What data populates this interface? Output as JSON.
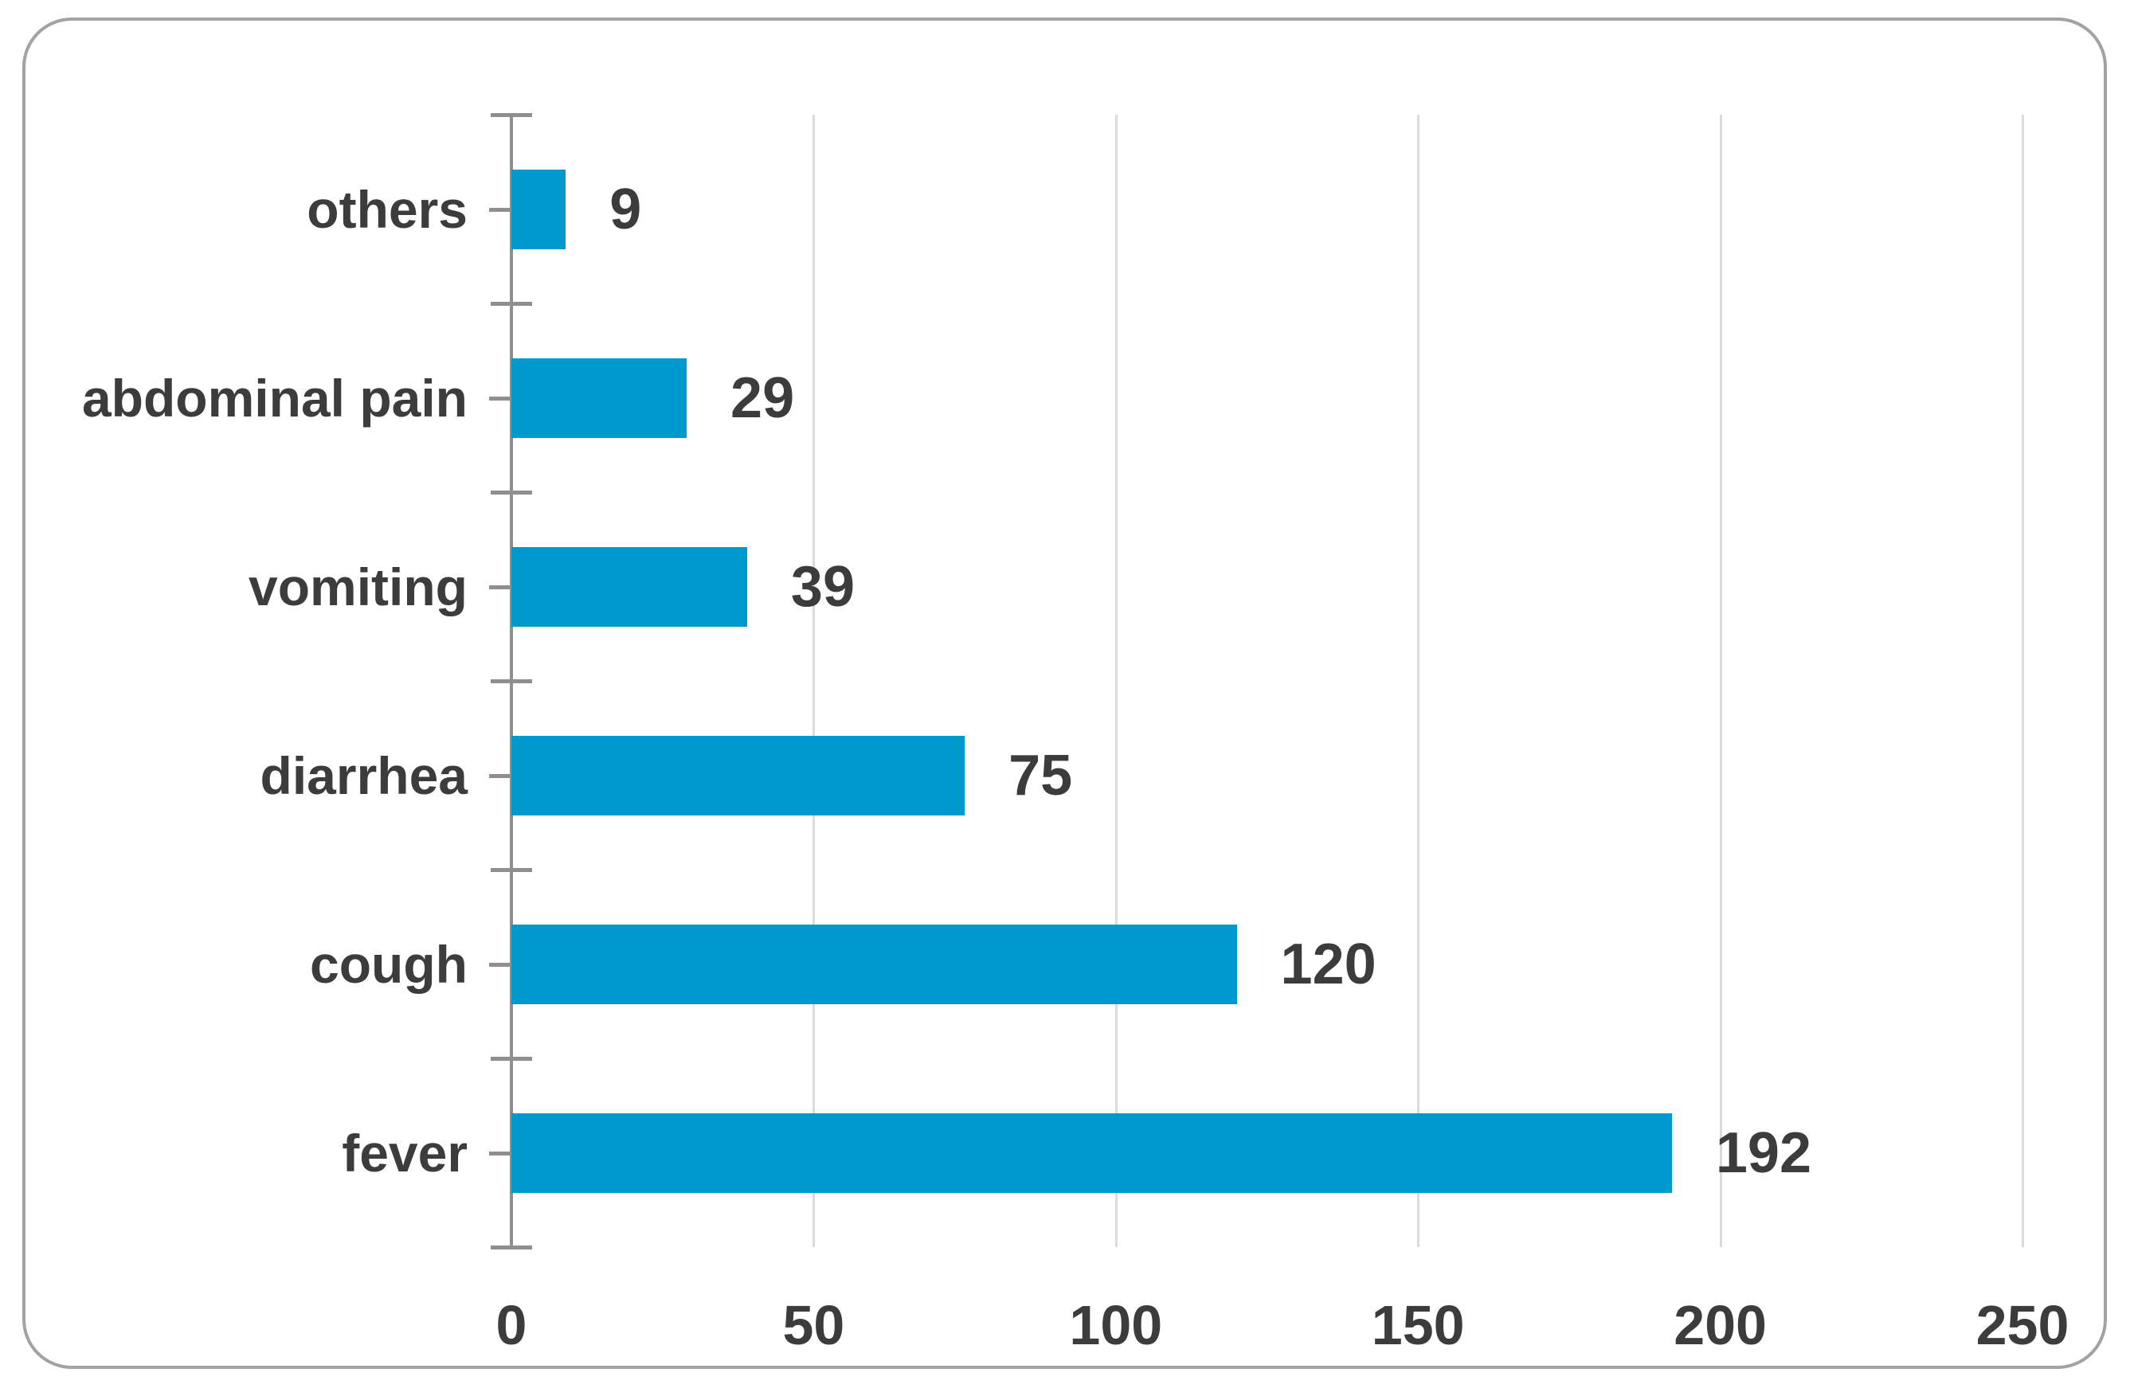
{
  "chart_data": {
    "type": "bar",
    "orientation": "horizontal",
    "title": "",
    "xlabel": "",
    "ylabel": "",
    "categories": [
      "others",
      "abdominal pain",
      "vomiting",
      "diarrhea",
      "cough",
      "fever"
    ],
    "values": [
      9,
      29,
      39,
      75,
      120,
      192
    ],
    "data_labels": [
      "9",
      "29",
      "39",
      "75",
      "120",
      "192"
    ],
    "x_ticks": [
      "0",
      "50",
      "100",
      "150",
      "200",
      "250"
    ],
    "xlim": [
      0,
      250
    ],
    "grid": "vertical-major-gridlines",
    "legend": "none",
    "colors": {
      "bar_fill": "#0099ce",
      "gridline": "#dbdbdb",
      "axis_line": "#8f8f8f",
      "text": "#3c3c3c",
      "card_border": "#a2a2a2",
      "background": "#ffffff"
    }
  }
}
